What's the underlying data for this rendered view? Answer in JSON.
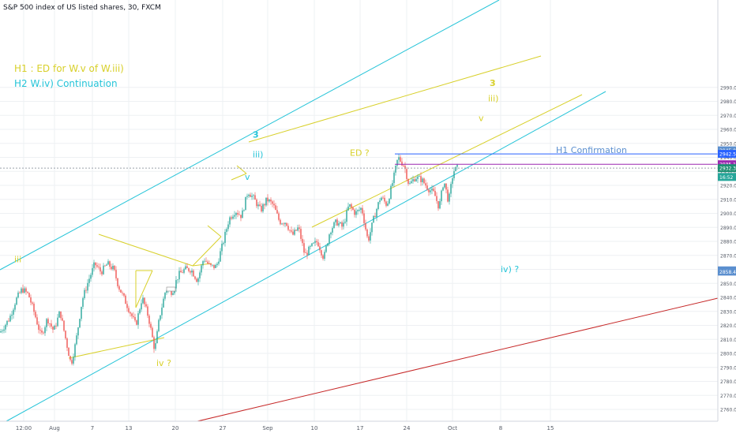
{
  "header": {
    "symbol_label": "S&P 500 index of US listed shares, 30, FXCM"
  },
  "chart_data": {
    "type": "candlestick",
    "title": "S&P 500 index of US listed shares, 30, FXCM",
    "x_tick_labels": [
      "12:00",
      "Aug",
      "7",
      "13",
      "20",
      "27",
      "Sep",
      "10",
      "17",
      "24",
      "Oct",
      "8",
      "15"
    ],
    "y_tick_labels": [
      "2760.0",
      "2770.0",
      "2780.0",
      "2790.0",
      "2800.0",
      "2810.0",
      "2820.0",
      "2830.0",
      "2840.0",
      "2850.0",
      "2860.0",
      "2870.0",
      "2880.0",
      "2890.0",
      "2900.0",
      "2910.0",
      "2920.0",
      "2930.0",
      "2940.0",
      "2950.0",
      "2960.0",
      "2970.0",
      "2980.0",
      "2990.0"
    ],
    "ylim": [
      2755,
      2996
    ],
    "price_path": [
      [
        0,
        2815
      ],
      [
        12,
        2825
      ],
      [
        20,
        2838
      ],
      [
        28,
        2846
      ],
      [
        36,
        2842
      ],
      [
        44,
        2828
      ],
      [
        52,
        2812
      ],
      [
        60,
        2825
      ],
      [
        68,
        2816
      ],
      [
        76,
        2830
      ],
      [
        84,
        2808
      ],
      [
        90,
        2792
      ],
      [
        96,
        2808
      ],
      [
        104,
        2838
      ],
      [
        112,
        2852
      ],
      [
        120,
        2864
      ],
      [
        128,
        2858
      ],
      [
        136,
        2864
      ],
      [
        144,
        2860
      ],
      [
        150,
        2848
      ],
      [
        158,
        2838
      ],
      [
        166,
        2828
      ],
      [
        172,
        2820
      ],
      [
        180,
        2840
      ],
      [
        188,
        2826
      ],
      [
        196,
        2802
      ],
      [
        202,
        2826
      ],
      [
        210,
        2846
      ],
      [
        218,
        2844
      ],
      [
        226,
        2856
      ],
      [
        234,
        2860
      ],
      [
        242,
        2860
      ],
      [
        250,
        2852
      ],
      [
        258,
        2868
      ],
      [
        266,
        2862
      ],
      [
        274,
        2862
      ],
      [
        282,
        2878
      ],
      [
        290,
        2896
      ],
      [
        298,
        2902
      ],
      [
        306,
        2898
      ],
      [
        314,
        2916
      ],
      [
        322,
        2910
      ],
      [
        330,
        2902
      ],
      [
        338,
        2910
      ],
      [
        346,
        2906
      ],
      [
        354,
        2894
      ],
      [
        362,
        2894
      ],
      [
        370,
        2884
      ],
      [
        378,
        2890
      ],
      [
        386,
        2870
      ],
      [
        394,
        2876
      ],
      [
        402,
        2880
      ],
      [
        410,
        2868
      ],
      [
        418,
        2888
      ],
      [
        426,
        2894
      ],
      [
        434,
        2890
      ],
      [
        442,
        2906
      ],
      [
        450,
        2900
      ],
      [
        458,
        2904
      ],
      [
        466,
        2880
      ],
      [
        474,
        2898
      ],
      [
        482,
        2912
      ],
      [
        490,
        2906
      ],
      [
        498,
        2924
      ],
      [
        504,
        2940
      ],
      [
        512,
        2934
      ],
      [
        518,
        2920
      ],
      [
        526,
        2926
      ],
      [
        534,
        2924
      ],
      [
        542,
        2918
      ],
      [
        550,
        2914
      ],
      [
        556,
        2904
      ],
      [
        562,
        2924
      ],
      [
        568,
        2908
      ],
      [
        574,
        2930
      ],
      [
        580,
        2933
      ]
    ],
    "levels": [
      {
        "price": 2942.5,
        "color": "#2962ff",
        "label": "2942.5"
      },
      {
        "price": 2935.1,
        "color": "#9c27b0",
        "label": "2935.1"
      },
      {
        "price": 2932.3,
        "color": "#9aa1ab",
        "label": "2932.3"
      }
    ],
    "price_badges": [
      {
        "label": "2945.0",
        "price": 2945.0,
        "color": "#5b8fcf"
      },
      {
        "label": "2942.5",
        "price": 2942.5,
        "color": "#2962ff"
      },
      {
        "label": "2935.1",
        "price": 2935.1,
        "color": "#9c27b0"
      },
      {
        "label": "2932.3",
        "price": 2932.3,
        "color": "#1e8f73"
      },
      {
        "label": "16:52",
        "price": 2926.0,
        "color": "#26a69a"
      },
      {
        "label": "2859.3",
        "price": 2859.3,
        "color": "#5b8fcf"
      },
      {
        "label": "2858.4",
        "price": 2858.4,
        "color": "#5b8fcf"
      }
    ],
    "annotations": [
      {
        "text": "3",
        "color": "#d8d02a",
        "x": 620,
        "price": 2991
      },
      {
        "text": "iii)",
        "color": "#d8d02a",
        "x": 618,
        "price": 2980
      },
      {
        "text": "v",
        "color": "#d8d02a",
        "x": 606,
        "price": 2966
      },
      {
        "text": "3",
        "color": "#25c4d8",
        "x": 320,
        "price": 2954
      },
      {
        "text": "iii)",
        "color": "#25c4d8",
        "x": 320,
        "price": 2940
      },
      {
        "text": "v",
        "color": "#25c4d8",
        "x": 310,
        "price": 2924
      },
      {
        "text": "ED ?",
        "color": "#d8d02a",
        "x": 443,
        "price": 2941
      },
      {
        "text": "H1 Confirmation",
        "color": "#5b8fcf",
        "x": 704,
        "price": 2943
      },
      {
        "text": "iii",
        "color": "#d8d02a",
        "x": 18,
        "price": 2865
      },
      {
        "text": "iv) ?",
        "color": "#25c4d8",
        "x": 634,
        "price": 2858
      },
      {
        "text": "iv ?",
        "color": "#d8d02a",
        "x": 198,
        "price": 2791
      }
    ],
    "hypotheses": [
      {
        "text": "H1 : ED for W.v of W.iii)",
        "color": "#d8d02a"
      },
      {
        "text": "H2 W.iv) Continuation",
        "color": "#25c4d8"
      }
    ]
  },
  "colors": {
    "up": "#26a69a",
    "down": "#ef5350",
    "channel": "#25c4d8",
    "wedge": "#d8d02a",
    "trend_red": "#c62828",
    "grid": "#eef0f3",
    "axis_text": "#555b66"
  }
}
